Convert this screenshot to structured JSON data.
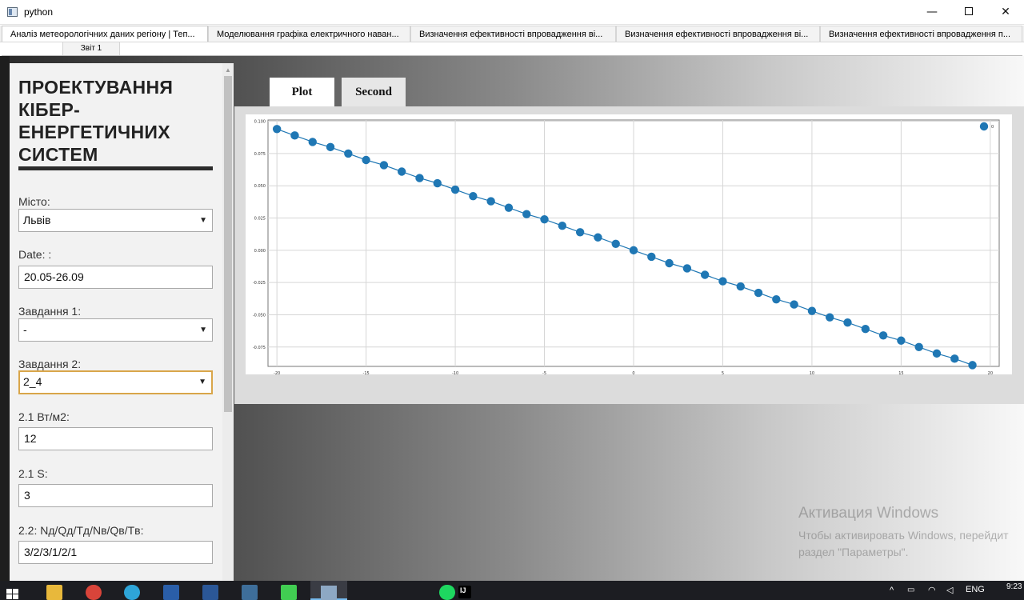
{
  "window": {
    "title": "python",
    "minimize_glyph": "—",
    "close_glyph": "✕"
  },
  "tabs": [
    {
      "label": "Аналіз метеорологічних даних регіону | Теп..."
    },
    {
      "label": "Моделювання графіка електричного наван..."
    },
    {
      "label": "Визначення ефективності впровадження ві..."
    },
    {
      "label": "Визначення ефективності впровадження ві..."
    },
    {
      "label": "Визначення ефективності впровадження п..."
    }
  ],
  "subtab": {
    "label": "Звіт 1"
  },
  "sidebar": {
    "title": "ПРОЕКТУВАННЯ КІБЕР-ЕНЕРГЕТИЧНИХ СИСТЕМ",
    "city_label": "Місто:",
    "city_value": "Львів",
    "date_label": "Date: :",
    "date_value": "20.05-26.09",
    "task1_label": "Завдання 1:",
    "task1_value": "-",
    "task2_label": "Завдання 2:",
    "task2_value": "2_4",
    "field21_label": "2.1 Вт/м2:",
    "field21_value": "12",
    "field21s_label": "2.1 S:",
    "field21s_value": "3",
    "field22_label": "2.2: Nд/Qд/Tд/Nв/Qв/Tв:",
    "field22_value": "3/2/3/1/2/1",
    "dropdown_arrow": "▼"
  },
  "plot_tabs": {
    "plot": "Plot",
    "second": "Second"
  },
  "chart_data": {
    "type": "line",
    "legend_label": "0",
    "legend_position": "top-right",
    "grid": true,
    "xlim": [
      -20.5,
      20.5
    ],
    "ylim": [
      -0.09,
      0.101
    ],
    "x_ticks": [
      -20,
      -15,
      -10,
      -5,
      0,
      5,
      10,
      15,
      20
    ],
    "x_tick_labels": [
      "-20",
      "-15",
      "-10",
      "-5",
      "0",
      "5",
      "10",
      "15",
      "20"
    ],
    "y_ticks": [
      0.1,
      0.075,
      0.05,
      0.025,
      0.0,
      -0.025,
      -0.05,
      -0.075
    ],
    "y_tick_labels": [
      "0.100",
      "0.075",
      "0.050",
      "0.025",
      "0.000",
      "-0.025",
      "-0.050",
      "-0.075"
    ],
    "series": [
      {
        "color": "#1f77b4",
        "x": [
          -20,
          -19,
          -18,
          -17,
          -16,
          -15,
          -14,
          -13,
          -12,
          -11,
          -10,
          -9,
          -8,
          -7,
          -6,
          -5,
          -4,
          -3,
          -2,
          -1,
          0,
          1,
          2,
          3,
          4,
          5,
          6,
          7,
          8,
          9,
          10,
          11,
          12,
          13,
          14,
          15,
          16,
          17,
          18,
          19
        ],
        "y": [
          0.094,
          0.089,
          0.084,
          0.08,
          0.075,
          0.07,
          0.066,
          0.061,
          0.056,
          0.052,
          0.047,
          0.042,
          0.038,
          0.033,
          0.028,
          0.024,
          0.019,
          0.014,
          0.01,
          0.005,
          0.0,
          -0.005,
          -0.01,
          -0.014,
          -0.019,
          -0.024,
          -0.028,
          -0.033,
          -0.038,
          -0.042,
          -0.047,
          -0.052,
          -0.056,
          -0.061,
          -0.066,
          -0.07,
          -0.075,
          -0.08,
          -0.084,
          -0.089
        ]
      }
    ]
  },
  "activation": {
    "title": "Активация Windows",
    "line1": "Чтобы активировать Windows, перейдит",
    "line2": "раздел \"Параметры\"."
  },
  "taskbar": {
    "apps": [
      {
        "icon": "file-explorer-icon",
        "color": "#e8b83b"
      },
      {
        "icon": "chrome-icon",
        "color": "#d9443a"
      },
      {
        "icon": "telegram-icon",
        "color": "#2ea5d8"
      },
      {
        "icon": "powershell-icon",
        "color": "#2a5ea8"
      },
      {
        "icon": "word-icon",
        "color": "#2b5797"
      },
      {
        "icon": "mysql-workbench-icon",
        "color": "#3e6e9a"
      },
      {
        "icon": "qt-creator-icon",
        "color": "#41cd52"
      },
      {
        "icon": "python-window-icon",
        "color": "#8da8c4"
      },
      {
        "icon": "spotify-icon",
        "color": "#1ed760"
      },
      {
        "icon": "intellij-icon",
        "color": "#000000"
      }
    ],
    "intellij_label": "IJ",
    "language": "ENG",
    "time": "9:23",
    "tray_up": "^"
  }
}
